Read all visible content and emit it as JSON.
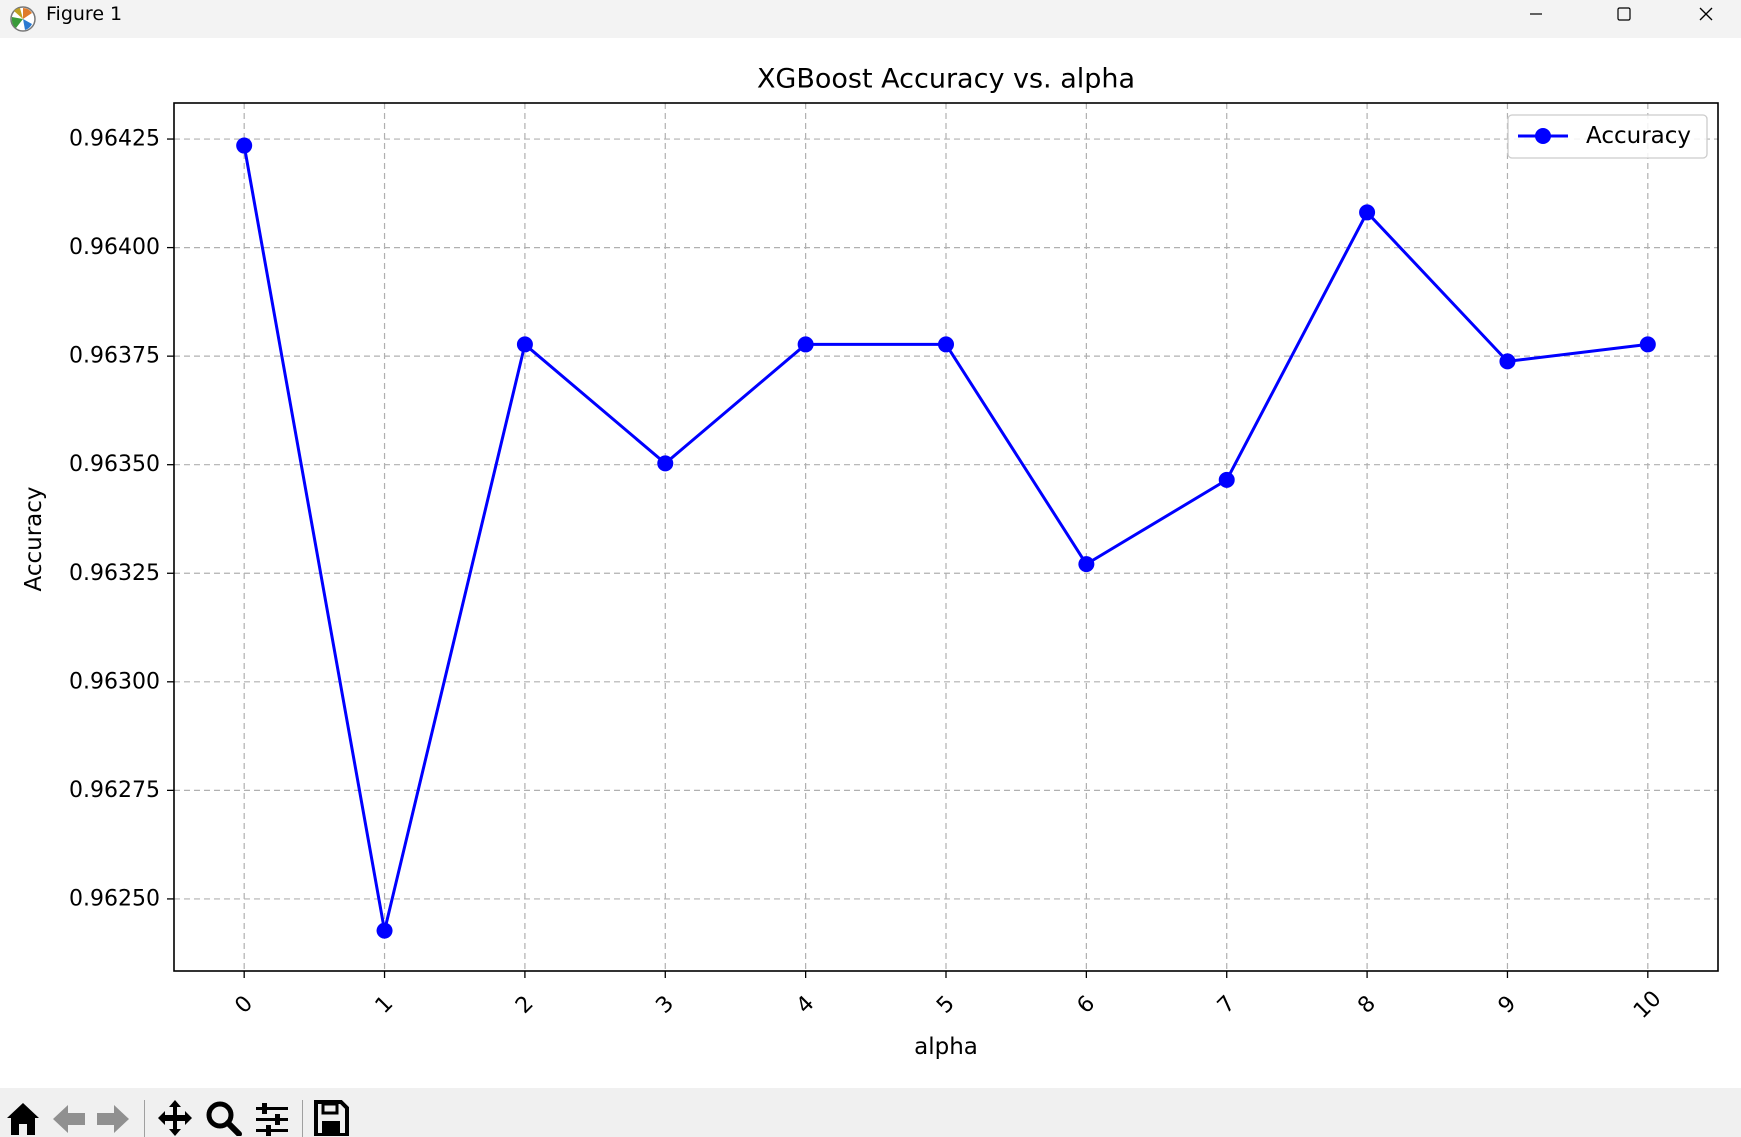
{
  "window": {
    "title": "Figure 1",
    "icon": "matplotlib-logo-icon",
    "controls": [
      "minimize-icon",
      "maximize-icon",
      "close-icon"
    ]
  },
  "toolbar": {
    "buttons": [
      "home-icon",
      "back-arrow-icon",
      "forward-arrow-icon",
      "pan-move-icon",
      "zoom-magnifier-icon",
      "configure-subplots-icon",
      "save-floppy-icon"
    ]
  },
  "colors": {
    "series": "#0000ff",
    "grid": "#b0b0b0",
    "axes": "#000000",
    "background": "#ffffff"
  },
  "chart_data": {
    "type": "line",
    "title": "XGBoost Accuracy vs. alpha",
    "xlabel": "alpha",
    "ylabel": "Accuracy",
    "x": [
      0,
      1,
      2,
      3,
      4,
      5,
      6,
      7,
      8,
      9,
      10
    ],
    "xtick_labels": [
      "0",
      "1",
      "2",
      "3",
      "4",
      "5",
      "6",
      "7",
      "8",
      "9",
      "10"
    ],
    "xlim": [
      -0.5,
      10.5
    ],
    "ylim": [
      0.962334,
      0.964333
    ],
    "yticks": [
      0.9625,
      0.96275,
      0.963,
      0.96325,
      0.9635,
      0.96375,
      0.964,
      0.96425
    ],
    "ytick_labels": [
      "0.96250",
      "0.96275",
      "0.96300",
      "0.96325",
      "0.96350",
      "0.96375",
      "0.96400",
      "0.96425"
    ],
    "grid": true,
    "grid_style": "dashed",
    "legend_position": "upper right",
    "series": [
      {
        "name": "Accuracy",
        "marker": "circle",
        "values": [
          0.964235,
          0.962427,
          0.963777,
          0.963503,
          0.963777,
          0.963777,
          0.963271,
          0.963465,
          0.964081,
          0.963738,
          0.963777
        ]
      }
    ]
  }
}
